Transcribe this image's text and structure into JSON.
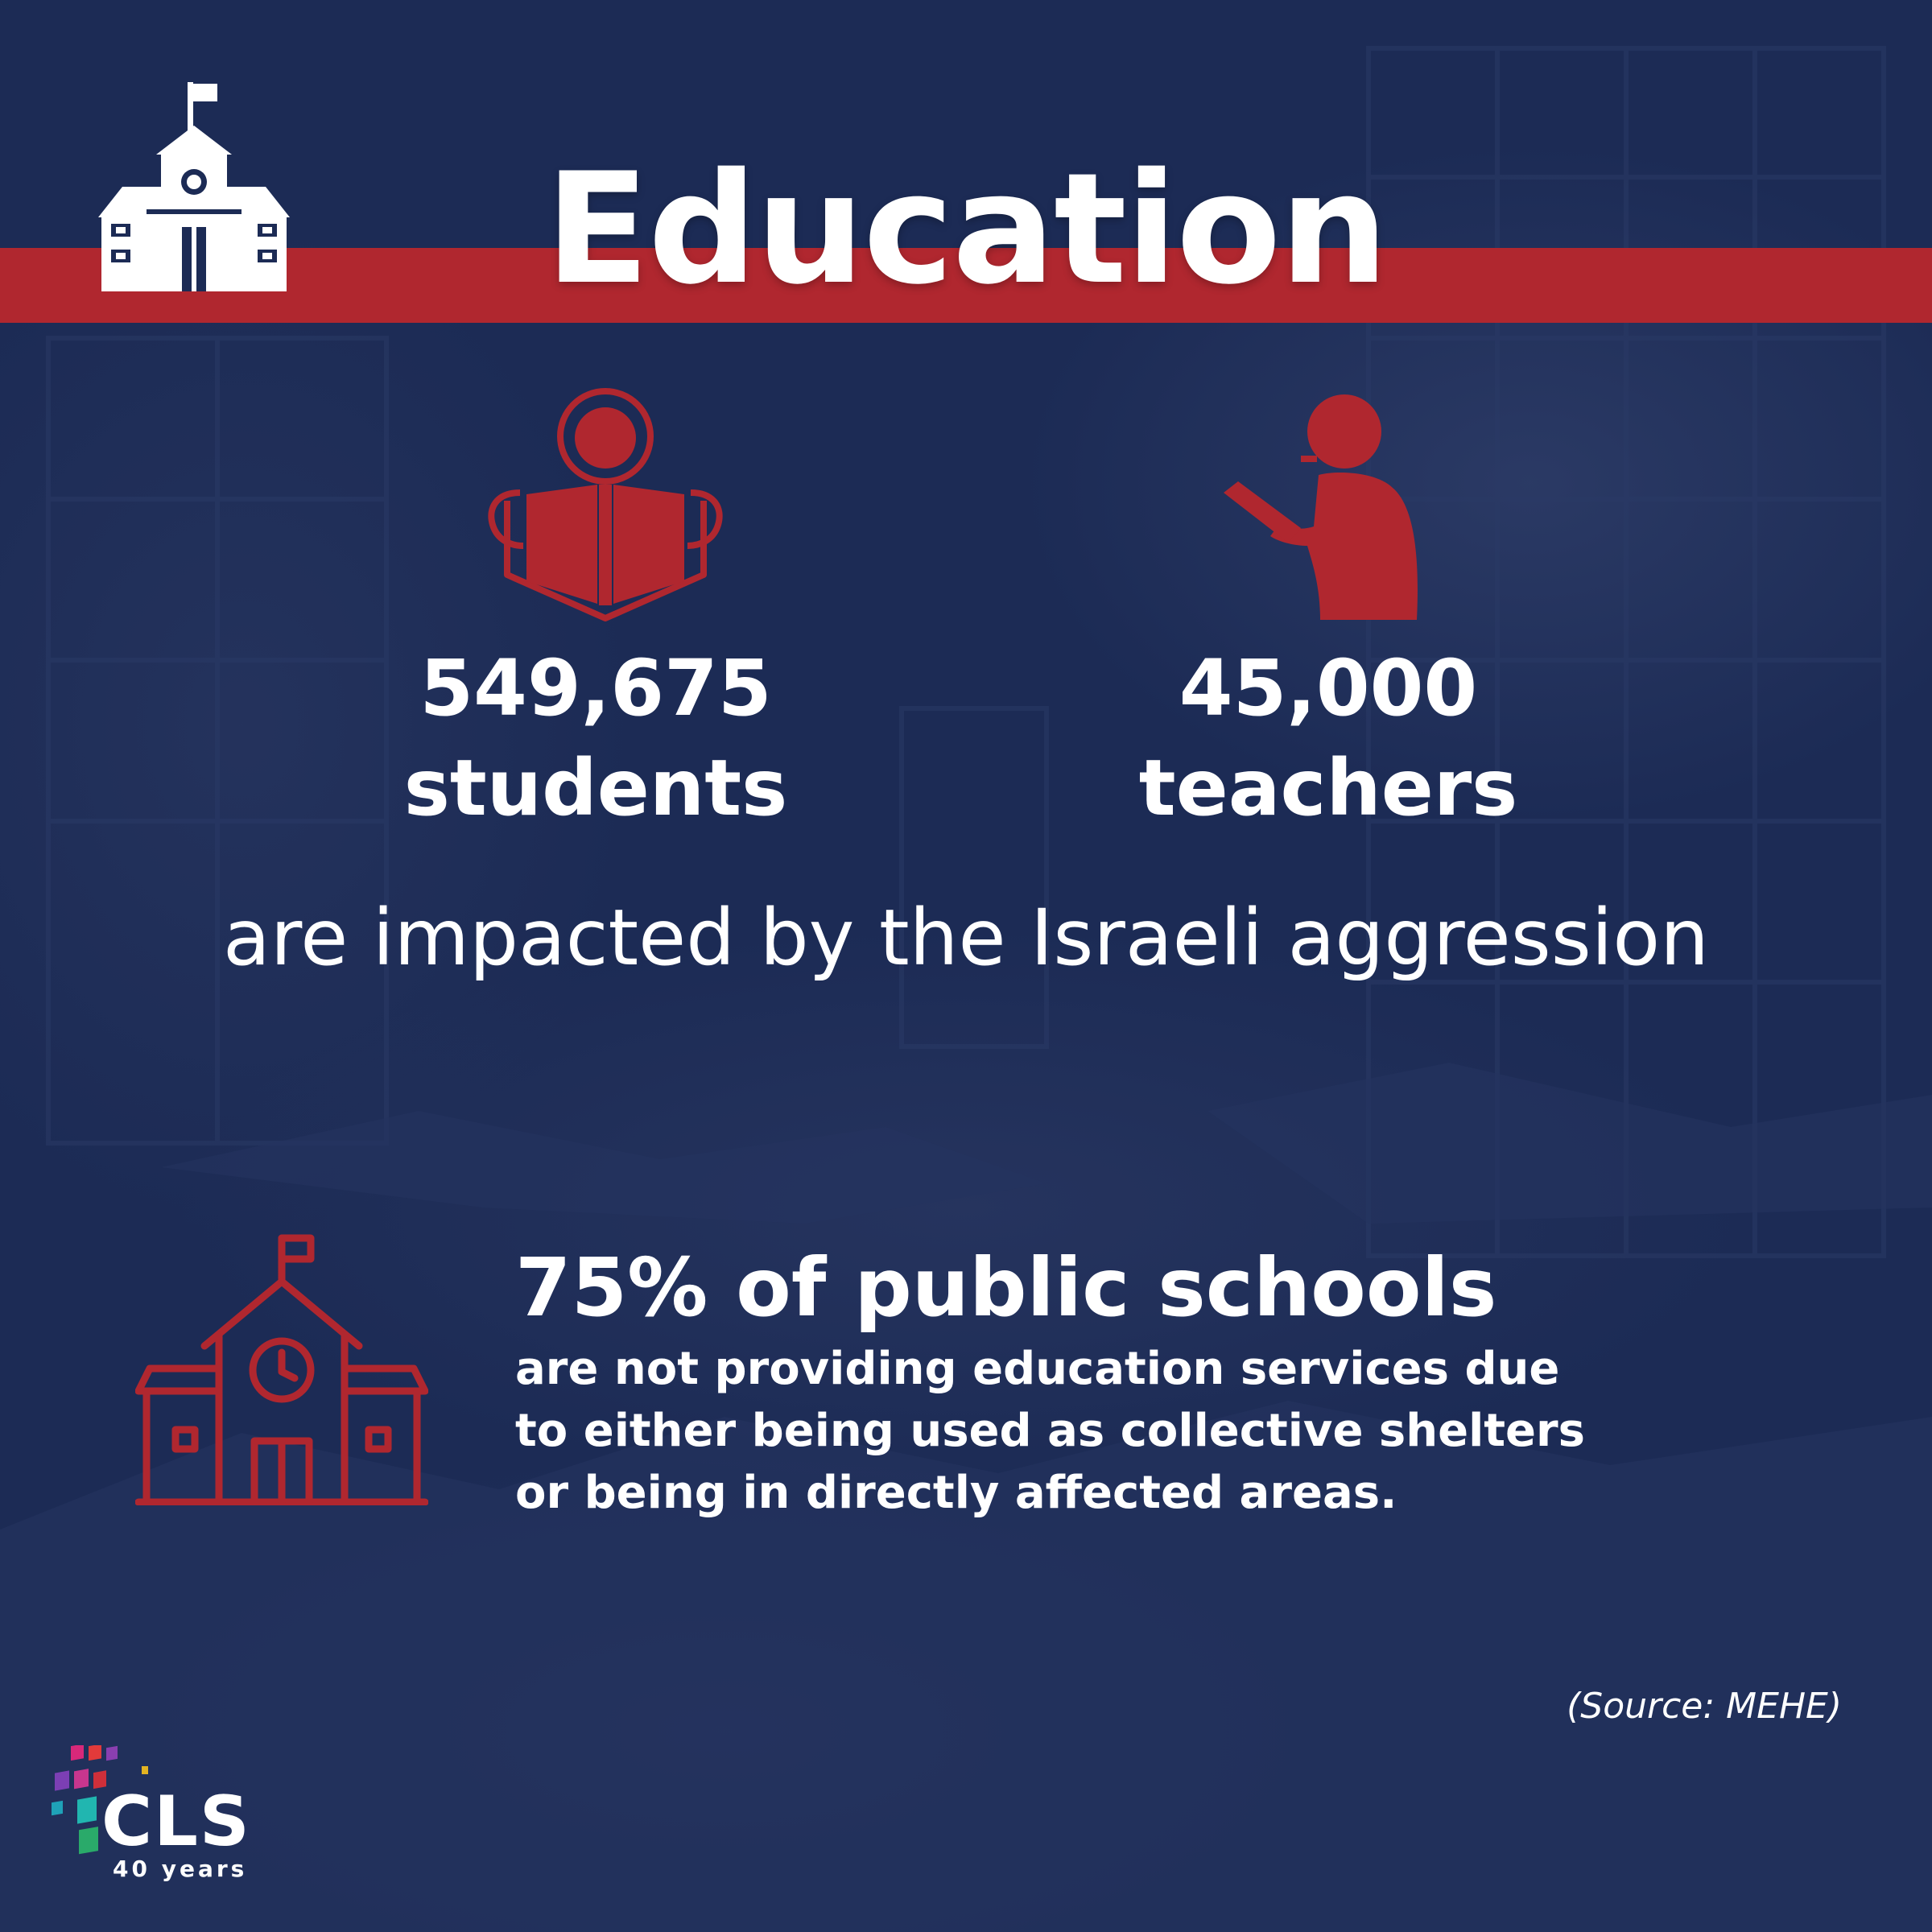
{
  "header": {
    "title": "Education"
  },
  "icons": {
    "school_top": "school-building-icon",
    "student": "student-reading-icon",
    "teacher": "teacher-silhouette-icon",
    "school_bottom": "school-building-clock-icon"
  },
  "stats": [
    {
      "value": "549,675",
      "label": "students"
    },
    {
      "value": "45,000",
      "label": "teachers"
    }
  ],
  "impact_text": "are impacted by the Israeli aggression",
  "schools": {
    "headline": "75% of public schools",
    "lines": [
      "are not providing education services due",
      "to either being used as collective shelters",
      "or being in directly affected areas."
    ]
  },
  "source": "(Source: MEHE)",
  "logo": {
    "name": "CLS",
    "tagline": "40 years"
  },
  "colors": {
    "background": "#1c2b55",
    "accent_red": "#b0272f",
    "text": "#ffffff"
  }
}
